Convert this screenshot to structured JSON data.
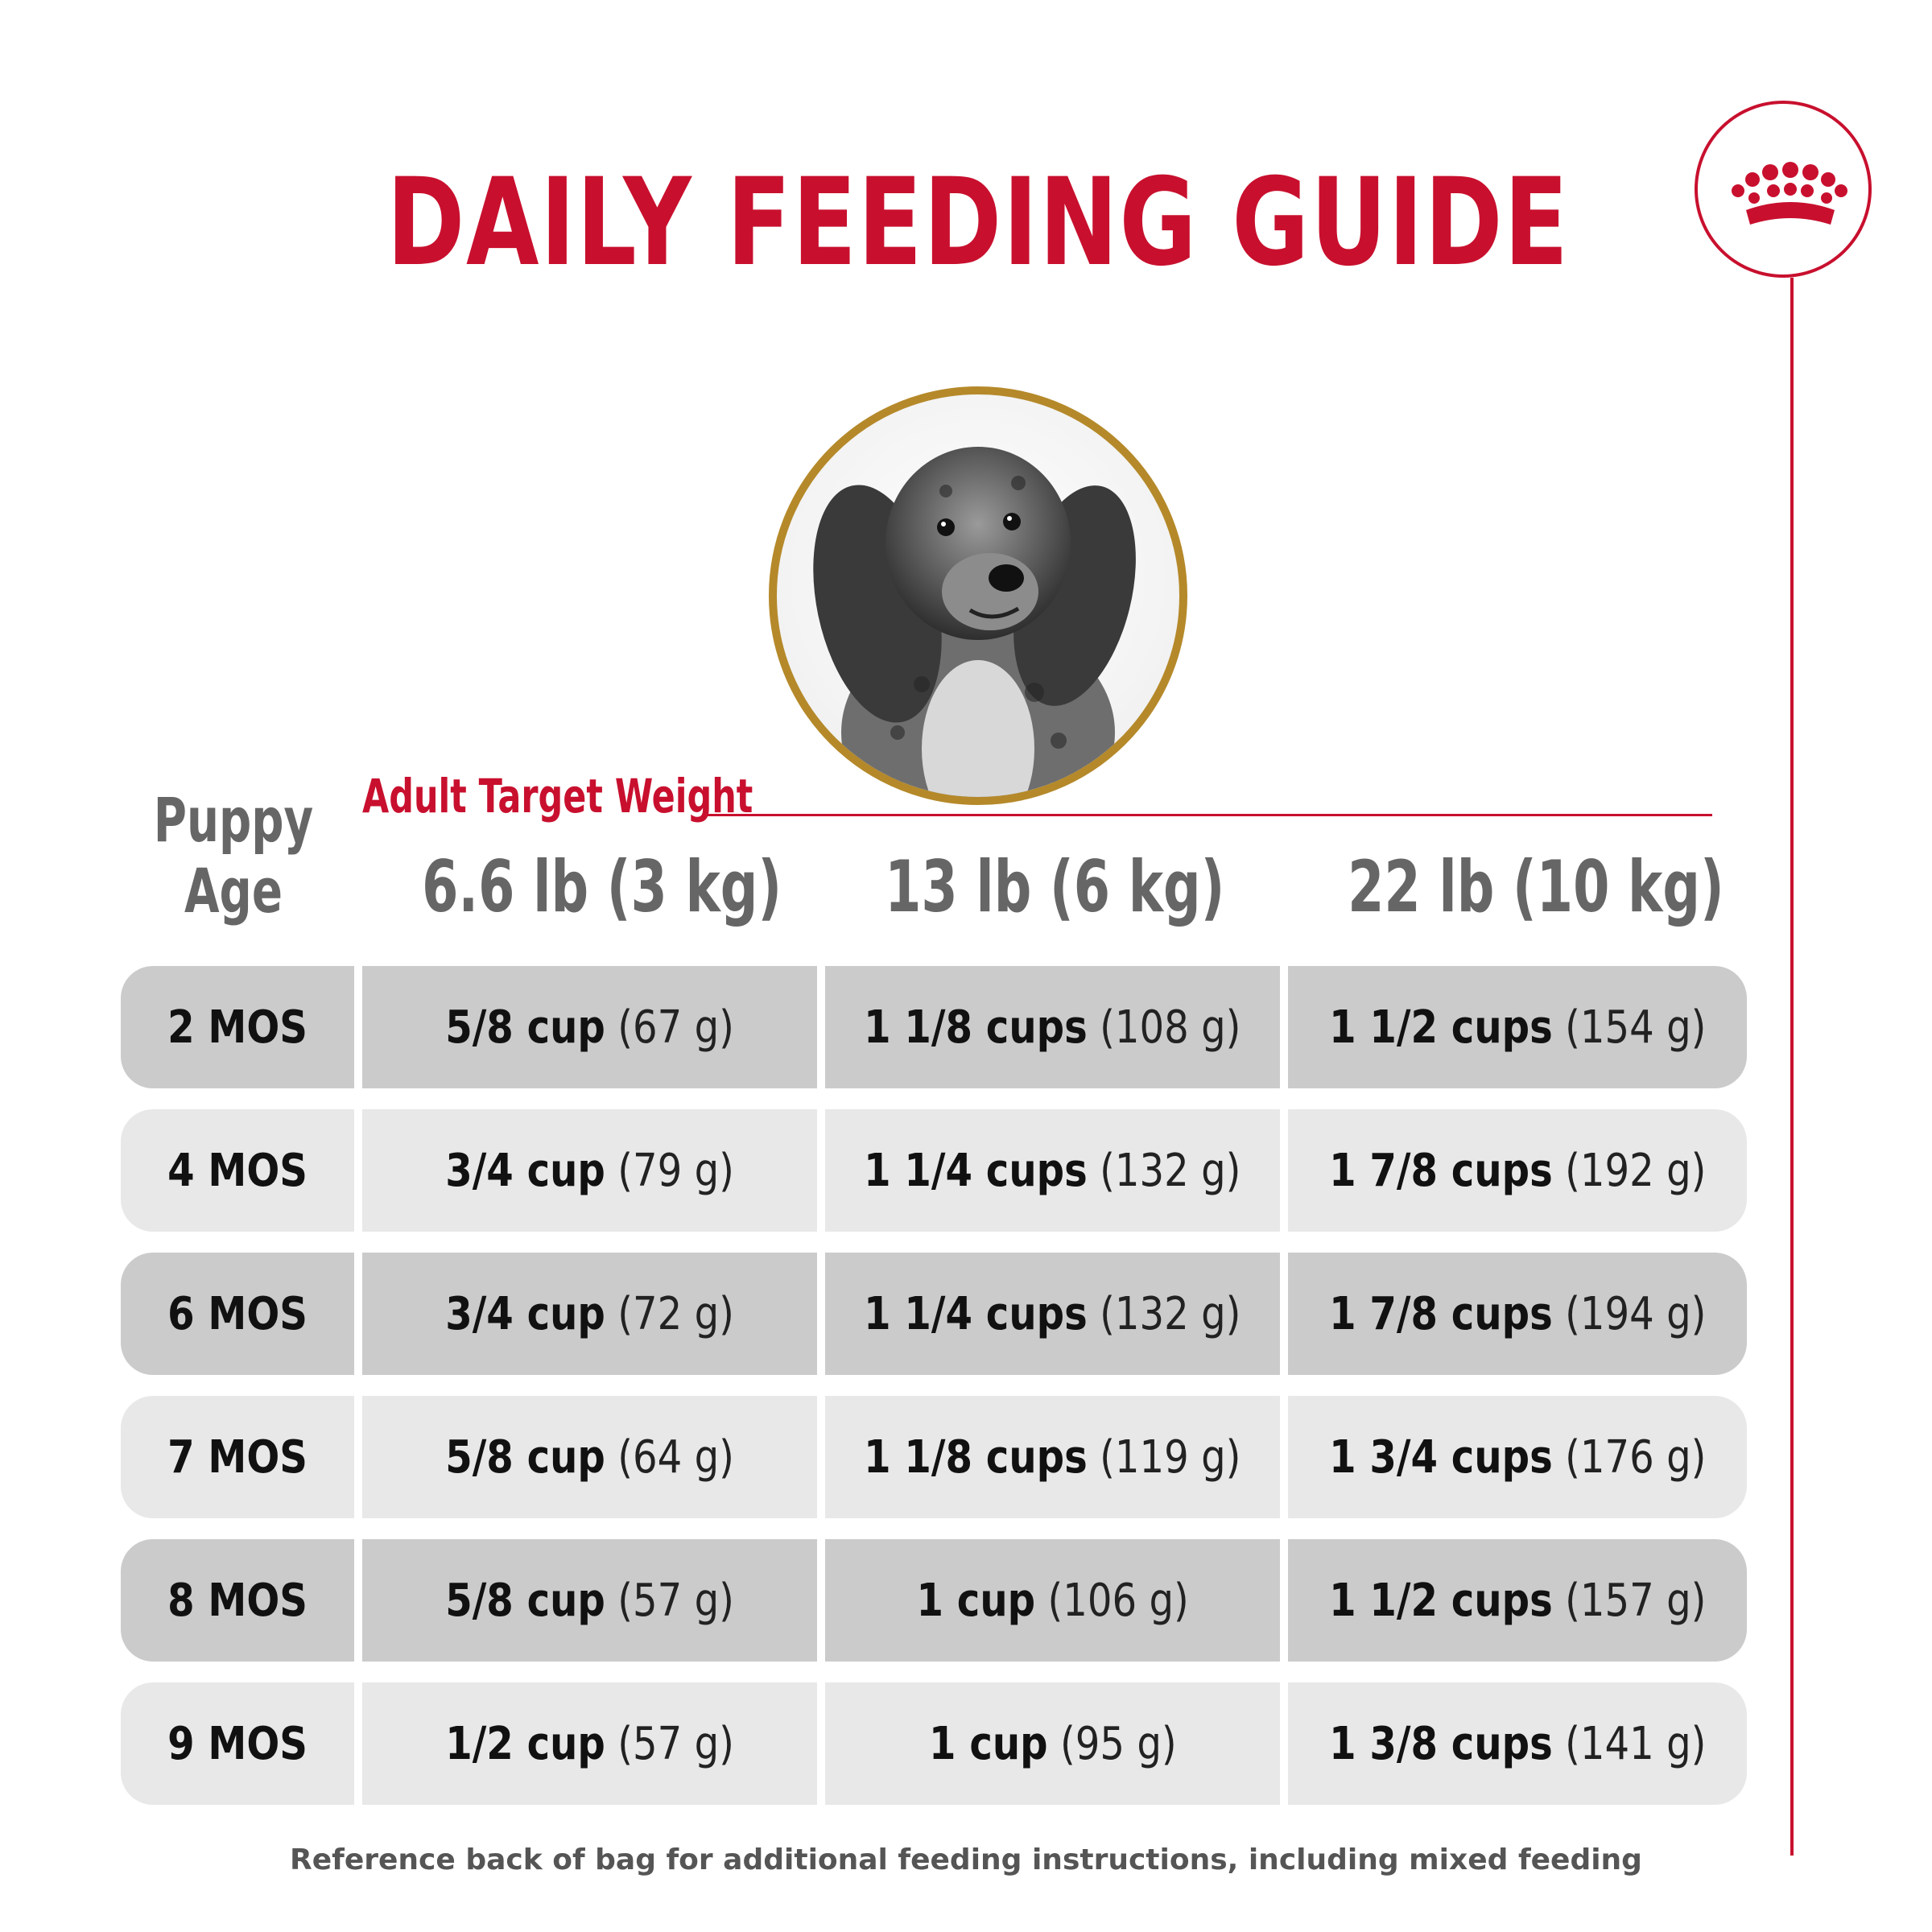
{
  "title": "DAILY FEEDING GUIDE",
  "header": {
    "age_label_line1": "Puppy",
    "age_label_line2": "Age",
    "target_label": "Adult Target Weight",
    "weights": [
      "6.6 lb (3 kg)",
      "13 lb (6 kg)",
      "22 lb (10 kg)"
    ]
  },
  "rows": [
    {
      "age": "2 MOS",
      "cells": [
        {
          "amount": "5/8 cup",
          "grams": "(67 g)"
        },
        {
          "amount": "1 1/8 cups",
          "grams": "(108 g)"
        },
        {
          "amount": "1 1/2 cups",
          "grams": "(154 g)"
        }
      ]
    },
    {
      "age": "4 MOS",
      "cells": [
        {
          "amount": "3/4 cup",
          "grams": "(79 g)"
        },
        {
          "amount": "1 1/4 cups",
          "grams": "(132 g)"
        },
        {
          "amount": "1 7/8 cups",
          "grams": "(192 g)"
        }
      ]
    },
    {
      "age": "6 MOS",
      "cells": [
        {
          "amount": "3/4 cup",
          "grams": "(72 g)"
        },
        {
          "amount": "1 1/4 cups",
          "grams": "(132 g)"
        },
        {
          "amount": "1 7/8 cups",
          "grams": "(194 g)"
        }
      ]
    },
    {
      "age": "7 MOS",
      "cells": [
        {
          "amount": "5/8 cup",
          "grams": "(64 g)"
        },
        {
          "amount": "1 1/8 cups",
          "grams": "(119 g)"
        },
        {
          "amount": "1 3/4 cups",
          "grams": "(176 g)"
        }
      ]
    },
    {
      "age": "8 MOS",
      "cells": [
        {
          "amount": "5/8 cup",
          "grams": "(57 g)"
        },
        {
          "amount": "1 cup",
          "grams": "(106 g)"
        },
        {
          "amount": "1 1/2 cups",
          "grams": "(157 g)"
        }
      ]
    },
    {
      "age": "9 MOS",
      "cells": [
        {
          "amount": "1/2 cup",
          "grams": "(57 g)"
        },
        {
          "amount": "1 cup",
          "grams": "(95 g)"
        },
        {
          "amount": "1 3/8 cups",
          "grams": "(141 g)"
        }
      ]
    }
  ],
  "footnote": "Reference back of bag for additional feeding instructions, including mixed feeding",
  "icons": {
    "logo": "crown-logo-icon",
    "photo": "puppy-photo"
  },
  "colors": {
    "brand_red": "#c8102e",
    "gold_ring": "#b5892a",
    "row_dark": "#cbcbcb",
    "row_light": "#e8e8e8"
  }
}
